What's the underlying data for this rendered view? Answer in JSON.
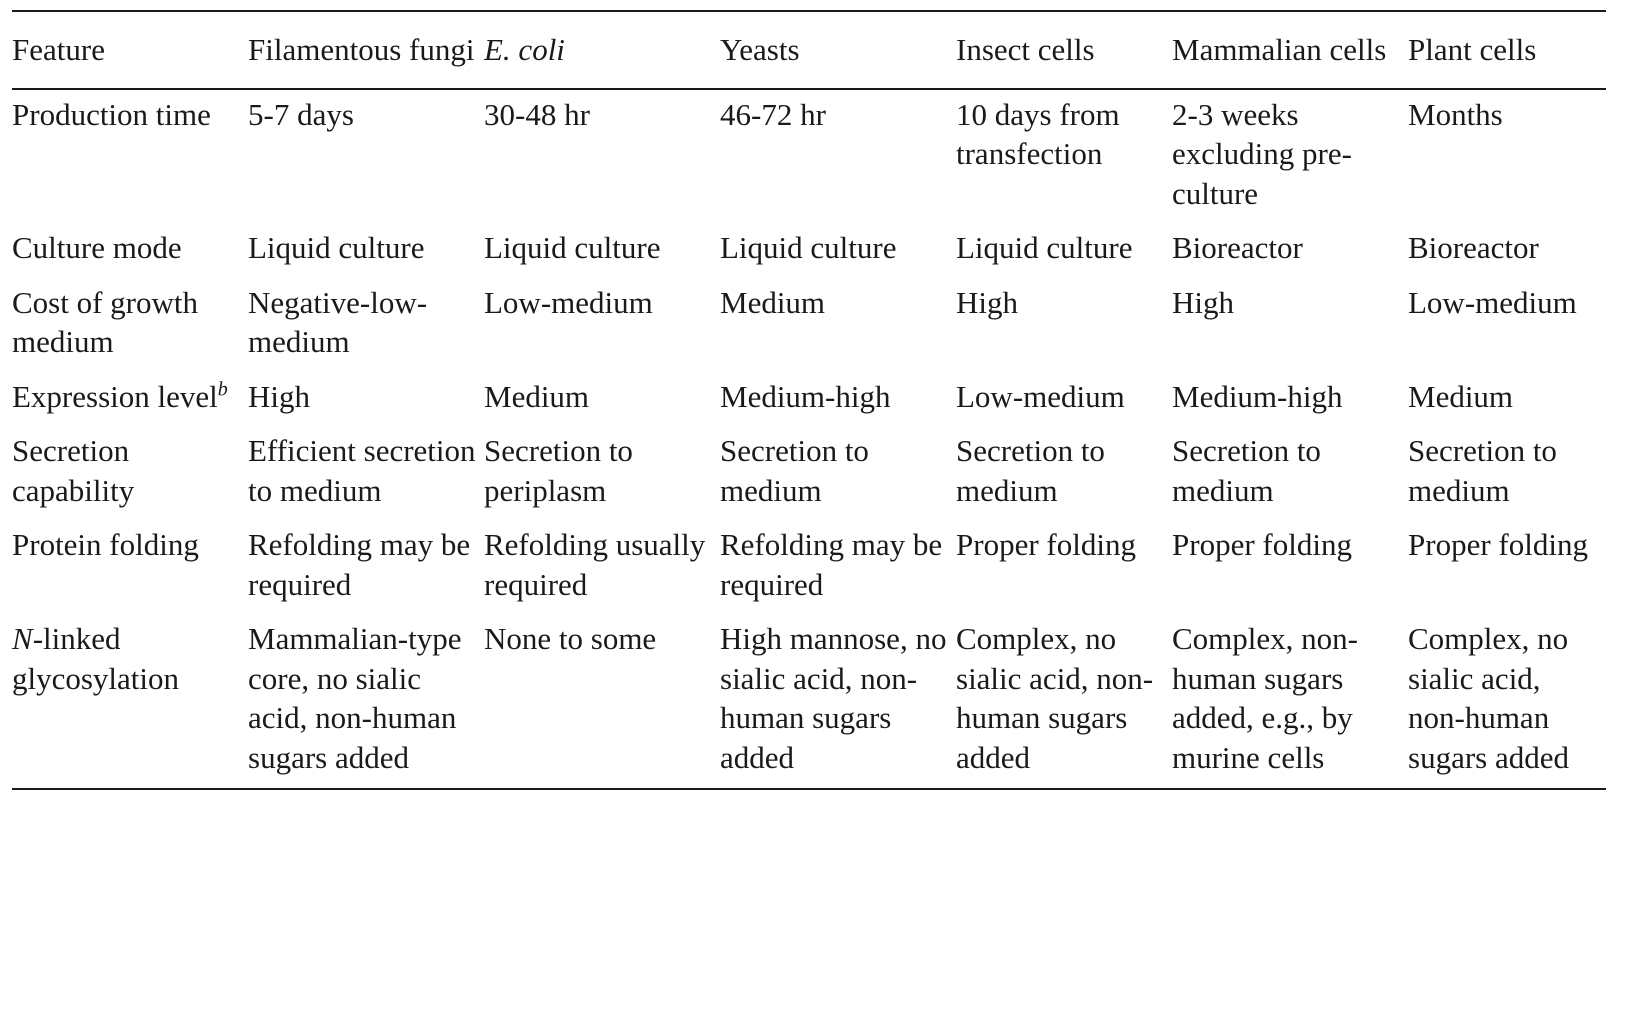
{
  "table": {
    "headers": [
      {
        "id": "feature",
        "label": "Feature"
      },
      {
        "id": "filamentous_fungi",
        "label": "Filamentous fungi"
      },
      {
        "id": "e_coli",
        "label": "E. coli",
        "italic": true
      },
      {
        "id": "yeasts",
        "label": "Yeasts"
      },
      {
        "id": "insect_cells",
        "label": "Insect cells"
      },
      {
        "id": "mammalian_cells",
        "label": "Mammalian cells"
      },
      {
        "id": "plant_cells",
        "label": "Plant cells"
      }
    ],
    "rows": [
      {
        "feature": "Production time",
        "cells": [
          "5-7 days",
          "30-48 hr",
          "46-72 hr",
          "10 days from transfection",
          "2-3 weeks excluding pre-culture",
          "Months"
        ]
      },
      {
        "feature": "Culture mode",
        "cells": [
          "Liquid culture",
          "Liquid culture",
          "Liquid culture",
          "Liquid culture",
          "Bioreactor",
          "Bioreactor"
        ]
      },
      {
        "feature": "Cost of growth medium",
        "cells": [
          "Negative-low-medium",
          "Low-medium",
          "Medium",
          "High",
          "High",
          "Low-medium"
        ]
      },
      {
        "feature": "Expression level",
        "feature_sup": "b",
        "cells": [
          "High",
          "Medium",
          "Medium-high",
          "Low-medium",
          "Medium-high",
          "Medium"
        ]
      },
      {
        "feature": "Secretion capability",
        "cells": [
          "Efficient secretion to medium",
          "Secretion to periplasm",
          "Secretion to medium",
          "Secretion to medium",
          "Secretion to medium",
          "Secretion to medium"
        ]
      },
      {
        "feature": "Protein folding",
        "cells": [
          "Refolding may be required",
          "Refolding usually required",
          "Refolding may be required",
          "Proper folding",
          "Proper folding",
          "Proper folding"
        ]
      },
      {
        "feature_prefix_italic": "N",
        "feature": "-linked glycosylation",
        "cells": [
          "Mammalian-type core, no sialic acid, non-human sugars added",
          "None to some",
          "High mannose, no sialic acid, non-human sugars added",
          "Complex, no sialic acid, non- human sugars added",
          "Complex, non-human sugars added, e.g., by murine cells",
          "Complex, no sialic acid, non-human sugars added"
        ]
      }
    ]
  }
}
